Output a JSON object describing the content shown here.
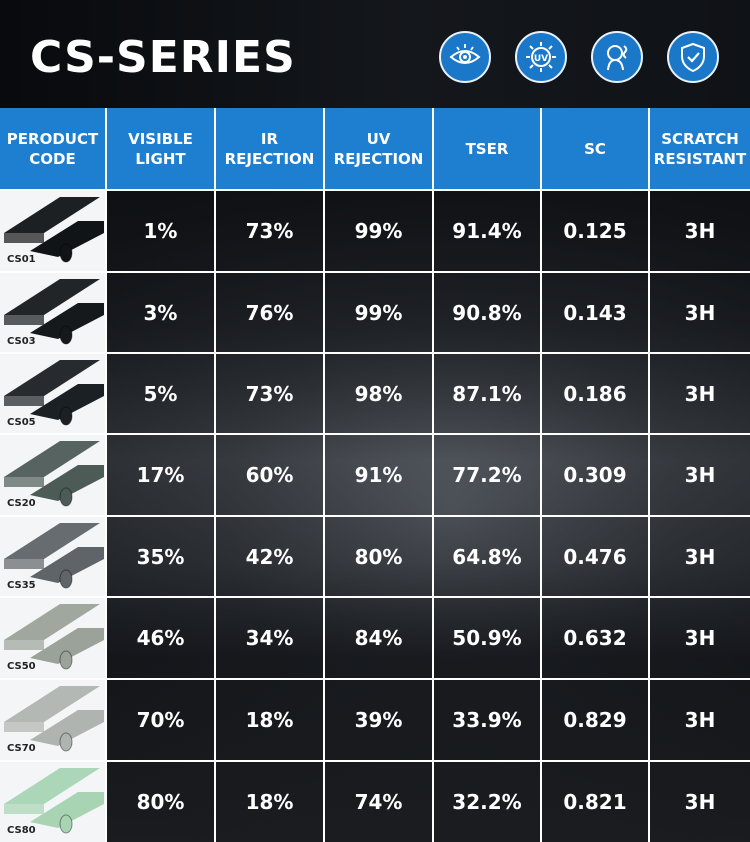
{
  "header": {
    "title": "CS-SERIES"
  },
  "icons": [
    "eye-icon",
    "uv-icon",
    "ir-heat-icon",
    "shield-icon"
  ],
  "columns": [
    "PERODUCT CODE",
    "VISIBLE LIGHT",
    "IR REJECTION",
    "UV REJECTION",
    "TSER",
    "SC",
    "SCRATCH RESISTANT"
  ],
  "columns_lines": [
    [
      "PERODUCT",
      "CODE"
    ],
    [
      "VISIBLE",
      "LIGHT"
    ],
    [
      "IR",
      "REJECTION"
    ],
    [
      "UV",
      "REJECTION"
    ],
    [
      "TSER"
    ],
    [
      "SC"
    ],
    [
      "SCRATCH",
      "RESISTANT"
    ]
  ],
  "rows": [
    {
      "code": "CS01",
      "visible_light": "1%",
      "ir_rejection": "73%",
      "uv_rejection": "99%",
      "tser": "91.4%",
      "sc": "0.125",
      "scratch": "3H",
      "tint": "#111417"
    },
    {
      "code": "CS03",
      "visible_light": "3%",
      "ir_rejection": "76%",
      "uv_rejection": "99%",
      "tser": "90.8%",
      "sc": "0.143",
      "scratch": "3H",
      "tint": "#15191c"
    },
    {
      "code": "CS05",
      "visible_light": "5%",
      "ir_rejection": "73%",
      "uv_rejection": "98%",
      "tser": "87.1%",
      "sc": "0.186",
      "scratch": "3H",
      "tint": "#1b2024"
    },
    {
      "code": "CS20",
      "visible_light": "17%",
      "ir_rejection": "60%",
      "uv_rejection": "91%",
      "tser": "77.2%",
      "sc": "0.309",
      "scratch": "3H",
      "tint": "#4d5b57"
    },
    {
      "code": "CS35",
      "visible_light": "35%",
      "ir_rejection": "42%",
      "uv_rejection": "80%",
      "tser": "64.8%",
      "sc": "0.476",
      "scratch": "3H",
      "tint": "#5e6468"
    },
    {
      "code": "CS50",
      "visible_light": "46%",
      "ir_rejection": "34%",
      "uv_rejection": "84%",
      "tser": "50.9%",
      "sc": "0.632",
      "scratch": "3H",
      "tint": "#9aa29a"
    },
    {
      "code": "CS70",
      "visible_light": "70%",
      "ir_rejection": "18%",
      "uv_rejection": "39%",
      "tser": "33.9%",
      "sc": "0.829",
      "scratch": "3H",
      "tint": "#b0b4b0"
    },
    {
      "code": "CS80",
      "visible_light": "80%",
      "ir_rejection": "18%",
      "uv_rejection": "74%",
      "tser": "32.2%",
      "sc": "0.821",
      "scratch": "3H",
      "tint": "#a8d4b4"
    }
  ],
  "colors": {
    "header_blue": "#1e7fd0",
    "icon_blue": "#1b78c8"
  }
}
